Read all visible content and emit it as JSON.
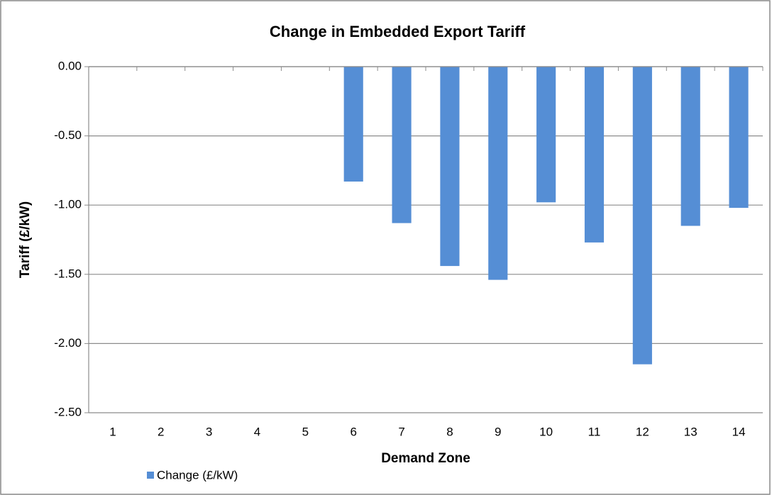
{
  "chart_data": {
    "type": "bar",
    "title": "Change in Embedded Export Tariff",
    "x_label": "Demand Zone",
    "y_label": "Tariff (£/kW)",
    "categories": [
      "1",
      "2",
      "3",
      "4",
      "5",
      "6",
      "7",
      "8",
      "9",
      "10",
      "11",
      "12",
      "13",
      "14"
    ],
    "series": [
      {
        "name": "Change (£/kW)",
        "color": "#558ed5",
        "values": [
          0,
          0,
          0,
          0,
          0,
          -0.83,
          -1.13,
          -1.44,
          -1.54,
          -0.98,
          -1.27,
          -2.15,
          -1.15,
          -1.02
        ]
      }
    ],
    "ylim": [
      -2.5,
      0
    ],
    "yticks": [
      {
        "value": 0,
        "label": "0.00"
      },
      {
        "value": -0.5,
        "label": "-0.50"
      },
      {
        "value": -1,
        "label": "-1.00"
      },
      {
        "value": -1.5,
        "label": "-1.50"
      },
      {
        "value": -2,
        "label": "-2.00"
      },
      {
        "value": -2.5,
        "label": "-2.50"
      }
    ],
    "grid": true,
    "legend": "bottom-left"
  }
}
